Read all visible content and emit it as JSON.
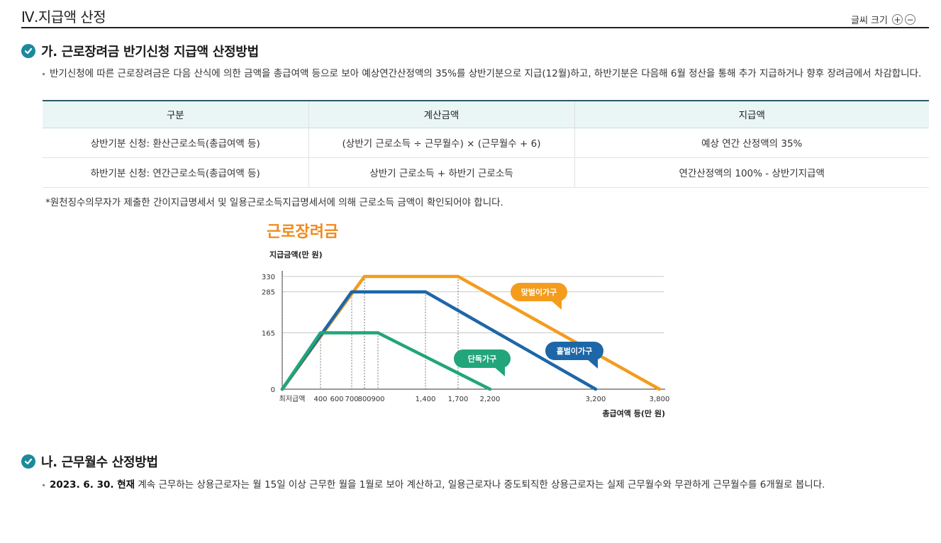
{
  "header": {
    "title": "Ⅳ.지급액 산정"
  },
  "font_size_control": {
    "label": "글씨 크기",
    "increase": "+",
    "decrease": "−"
  },
  "section_a": {
    "title": "가. 근로장려금 반기신청 지급액 산정방법",
    "paragraph": "반기신청에 따른 근로장려금은 다음 산식에 의한 금액을 총급여액 등으로 보아 예상연간산정액의 35%를 상반기분으로 지급(12월)하고, 하반기분은 다음해 6월 정산을 통해 추가 지급하거나 향후 장려금에서 차감합니다.",
    "table": {
      "headers": [
        "구분",
        "계산금액",
        "지급액"
      ],
      "rows": [
        [
          "상반기분 신청: 환산근로소득(총급여액 등)",
          "(상반기 근로소득 ÷ 근무월수) × (근무월수 + 6)",
          "예상 연간 산정액의 35%"
        ],
        [
          "하반기분 신청: 연간근로소득(총급여액 등)",
          "상반기 근로소득 + 하반기 근로소득",
          "연간산정액의 100% - 상반기지급액"
        ]
      ]
    },
    "note": "*원천징수의무자가 제출한 간이지급명세서 및 일용근로소득지급명세서에 의해 근로소득 금액이 확인되어야 합니다."
  },
  "chart_data": {
    "type": "line",
    "title": "근로장려금",
    "ylabel": "지급금액(만 원)",
    "xlabel": "총급여액 등(만 원)",
    "x_ticks": [
      "최저급액",
      "400",
      "600",
      "700",
      "800",
      "900",
      "1,400",
      "1,700",
      "2,200",
      "3,200",
      "3,800"
    ],
    "y_ticks": [
      "0",
      "165",
      "285",
      "330"
    ],
    "ylim": [
      0,
      330
    ],
    "series": [
      {
        "name": "맞벌이가구",
        "color": "#f39c1e",
        "points": [
          [
            0,
            0
          ],
          [
            800,
            330
          ],
          [
            1700,
            330
          ],
          [
            3800,
            0
          ]
        ]
      },
      {
        "name": "홑벌이가구",
        "color": "#1d67a8",
        "points": [
          [
            0,
            0
          ],
          [
            700,
            285
          ],
          [
            1400,
            285
          ],
          [
            3200,
            0
          ]
        ]
      },
      {
        "name": "단독가구",
        "color": "#22a57a",
        "points": [
          [
            0,
            0
          ],
          [
            400,
            165
          ],
          [
            900,
            165
          ],
          [
            2200,
            0
          ]
        ]
      }
    ]
  },
  "section_b": {
    "title": "나. 근무월수 산정방법",
    "paragraph_bold": "2023. 6. 30. 현재",
    "paragraph_rest": " 계속 근무하는 상용근로자는 월 15일 이상 근무한 월을 1월로 보아 계산하고, 일용근로자나 중도퇴직한 상용근로자는 실제 근무월수와 무관하게 근무월수를 6개월로 봅니다."
  }
}
